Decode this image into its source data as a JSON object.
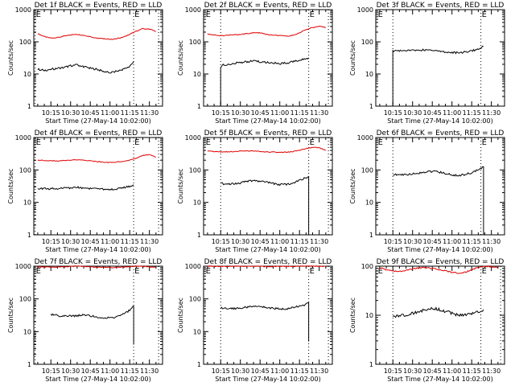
{
  "chart_data": [
    {
      "type": "line",
      "title": "Det 1f BLACK = Events, RED = LLD",
      "xlabel": "Start Time (27-May-14 10:02:00)",
      "ylabel": "Counts/sec",
      "yscale": "log",
      "ylim": [
        1,
        1000
      ],
      "y_ticks": [
        "1",
        "10",
        "100",
        "1000"
      ],
      "x_ticks": [
        "10:15",
        "10:30",
        "10:45",
        "11:00",
        "11:15",
        "11:30"
      ],
      "x_minutes": [
        15,
        30,
        45,
        60,
        75,
        90
      ],
      "xlim_minutes": [
        2,
        100
      ],
      "markers": [
        "E",
        "E"
      ],
      "marker_minutes": [
        3,
        78
      ],
      "vertical_dotted_minutes": [
        3,
        78,
        97
      ],
      "series": [
        {
          "color": "#e00000",
          "x": [
            5,
            10,
            15,
            20,
            25,
            30,
            35,
            40,
            45,
            50,
            55,
            60,
            65,
            70,
            75,
            80,
            85,
            90,
            95
          ],
          "y": [
            180,
            145,
            130,
            135,
            150,
            165,
            170,
            160,
            145,
            130,
            125,
            120,
            125,
            140,
            170,
            215,
            255,
            250,
            210
          ]
        },
        {
          "color": "#000000",
          "x": [
            5,
            10,
            15,
            20,
            25,
            30,
            35,
            40,
            45,
            50,
            55,
            60,
            65,
            70,
            75,
            78
          ],
          "y": [
            14,
            13,
            14,
            15,
            16,
            18,
            19,
            17,
            15,
            14,
            12,
            11,
            12,
            14,
            17,
            25
          ]
        }
      ]
    },
    {
      "type": "line",
      "title": "Det 2f BLACK = Events, RED = LLD",
      "xlabel": "Start Time (27-May-14 10:02:00)",
      "ylabel": "Counts/sec",
      "yscale": "log",
      "ylim": [
        1,
        1000
      ],
      "y_ticks": [
        "1",
        "10",
        "100",
        "1000"
      ],
      "x_ticks": [
        "10:15",
        "10:30",
        "10:45",
        "11:00",
        "11:15",
        "11:30"
      ],
      "x_minutes": [
        15,
        30,
        45,
        60,
        75,
        90
      ],
      "xlim_minutes": [
        2,
        100
      ],
      "markers": [
        "E",
        "E"
      ],
      "marker_minutes": [
        3,
        82
      ],
      "vertical_dotted_minutes": [
        15,
        82,
        97
      ],
      "series": [
        {
          "color": "#e00000",
          "x": [
            5,
            10,
            15,
            20,
            25,
            30,
            35,
            40,
            45,
            50,
            55,
            60,
            65,
            70,
            75,
            80,
            85,
            90,
            95
          ],
          "y": [
            175,
            165,
            155,
            160,
            165,
            170,
            180,
            190,
            190,
            170,
            160,
            155,
            150,
            160,
            190,
            240,
            280,
            300,
            280
          ]
        },
        {
          "color": "#000000",
          "x": [
            15,
            15,
            17,
            20,
            25,
            30,
            35,
            40,
            45,
            50,
            55,
            60,
            65,
            70,
            75,
            80,
            82
          ],
          "y": [
            1,
            15,
            19,
            20,
            21,
            23,
            24,
            25,
            24,
            23,
            22,
            21,
            22,
            24,
            27,
            30,
            32
          ]
        }
      ]
    },
    {
      "type": "line",
      "title": "Det 3f BLACK = Events, RED = LLD",
      "xlabel": "Start Time (27-May-14 10:02:00)",
      "ylabel": "Counts/sec",
      "yscale": "log",
      "ylim": [
        1,
        1000
      ],
      "y_ticks": [
        "1",
        "10",
        "100",
        "1000"
      ],
      "x_ticks": [
        "10:15",
        "10:30",
        "10:45",
        "11:00",
        "11:15",
        "11:30"
      ],
      "x_minutes": [
        15,
        30,
        45,
        60,
        75,
        90
      ],
      "xlim_minutes": [
        2,
        100
      ],
      "markers": [
        "E",
        "E"
      ],
      "marker_minutes": [
        3,
        82
      ],
      "vertical_dotted_minutes": [
        15,
        82
      ],
      "series": [
        {
          "color": "#000000",
          "x": [
            15,
            15,
            17,
            20,
            25,
            30,
            35,
            40,
            45,
            50,
            55,
            60,
            65,
            70,
            75,
            80,
            84
          ],
          "y": [
            1,
            52,
            52,
            52,
            53,
            54,
            55,
            56,
            55,
            52,
            48,
            46,
            46,
            48,
            52,
            60,
            72
          ]
        }
      ]
    },
    {
      "type": "line",
      "title": "Det 4f BLACK = Events, RED = LLD",
      "xlabel": "Start Time (27-May-14 10:02:00)",
      "ylabel": "Counts/sec",
      "yscale": "log",
      "ylim": [
        1,
        1000
      ],
      "y_ticks": [
        "1",
        "10",
        "100",
        "1000"
      ],
      "x_ticks": [
        "10:15",
        "10:30",
        "10:45",
        "11:00",
        "11:15",
        "11:30"
      ],
      "x_minutes": [
        15,
        30,
        45,
        60,
        75,
        90
      ],
      "xlim_minutes": [
        2,
        100
      ],
      "markers": [
        "E",
        "E"
      ],
      "marker_minutes": [
        3,
        78
      ],
      "vertical_dotted_minutes": [
        3,
        78,
        97
      ],
      "series": [
        {
          "color": "#e00000",
          "x": [
            5,
            10,
            15,
            20,
            25,
            30,
            35,
            40,
            45,
            50,
            55,
            60,
            65,
            70,
            75,
            80,
            85,
            90,
            95
          ],
          "y": [
            200,
            195,
            190,
            190,
            195,
            200,
            205,
            200,
            190,
            180,
            175,
            170,
            175,
            185,
            200,
            230,
            280,
            300,
            250
          ]
        },
        {
          "color": "#000000",
          "x": [
            5,
            10,
            15,
            20,
            25,
            30,
            35,
            40,
            45,
            50,
            55,
            60,
            65,
            70,
            75,
            78
          ],
          "y": [
            27,
            27,
            26,
            27,
            28,
            28,
            29,
            28,
            27,
            26,
            25,
            25,
            26,
            28,
            31,
            35
          ]
        }
      ]
    },
    {
      "type": "line",
      "title": "Det 5f BLACK = Events, RED = LLD",
      "xlabel": "Start Time (27-May-14 10:02:00)",
      "ylabel": "Counts/sec",
      "yscale": "log",
      "ylim": [
        1,
        1000
      ],
      "y_ticks": [
        "1",
        "10",
        "100",
        "1000"
      ],
      "x_ticks": [
        "10:15",
        "10:30",
        "10:45",
        "11:00",
        "11:15",
        "11:30"
      ],
      "x_minutes": [
        15,
        30,
        45,
        60,
        75,
        90
      ],
      "xlim_minutes": [
        2,
        100
      ],
      "markers": [
        "E",
        "E"
      ],
      "marker_minutes": [
        3,
        82
      ],
      "vertical_dotted_minutes": [
        15,
        82,
        97
      ],
      "series": [
        {
          "color": "#e00000",
          "x": [
            5,
            10,
            15,
            20,
            25,
            30,
            35,
            40,
            45,
            50,
            55,
            60,
            65,
            70,
            75,
            80,
            85,
            90,
            95
          ],
          "y": [
            380,
            370,
            360,
            365,
            370,
            380,
            385,
            380,
            370,
            360,
            355,
            350,
            355,
            370,
            400,
            450,
            500,
            480,
            400
          ]
        },
        {
          "color": "#000000",
          "x": [
            15,
            20,
            25,
            30,
            35,
            40,
            45,
            50,
            55,
            60,
            65,
            70,
            75,
            80,
            82,
            82
          ],
          "y": [
            38,
            37,
            38,
            40,
            44,
            46,
            45,
            42,
            38,
            35,
            36,
            40,
            48,
            58,
            62,
            1
          ]
        }
      ]
    },
    {
      "type": "line",
      "title": "Det 6f BLACK = Events, RED = LLD",
      "xlabel": "Start Time (27-May-14 10:02:00)",
      "ylabel": "Counts/sec",
      "yscale": "log",
      "ylim": [
        1,
        1000
      ],
      "y_ticks": [
        "1",
        "10",
        "100",
        "1000"
      ],
      "x_ticks": [
        "10:15",
        "10:30",
        "10:45",
        "11:00",
        "11:15",
        "11:30"
      ],
      "x_minutes": [
        15,
        30,
        45,
        60,
        75,
        90
      ],
      "xlim_minutes": [
        2,
        100
      ],
      "markers": [
        "E",
        "E"
      ],
      "marker_minutes": [
        3,
        82
      ],
      "vertical_dotted_minutes": [
        15,
        82
      ],
      "series": [
        {
          "color": "#000000",
          "x": [
            15,
            20,
            25,
            30,
            35,
            40,
            45,
            50,
            55,
            60,
            65,
            70,
            75,
            80,
            84,
            84
          ],
          "y": [
            72,
            70,
            72,
            75,
            80,
            88,
            90,
            86,
            78,
            70,
            68,
            72,
            82,
            100,
            125,
            1
          ]
        }
      ]
    },
    {
      "type": "line",
      "title": "Det 7f BLACK = Events, RED = LLD",
      "xlabel": "Start Time (27-May-14 10:02:00)",
      "ylabel": "Counts/sec",
      "yscale": "log",
      "ylim": [
        1,
        1000
      ],
      "y_ticks": [
        "1",
        "10",
        "100",
        "1000"
      ],
      "x_ticks": [
        "10:15",
        "10:30",
        "10:45",
        "11:00",
        "11:15",
        "11:30"
      ],
      "x_minutes": [
        15,
        30,
        45,
        60,
        75,
        90
      ],
      "xlim_minutes": [
        2,
        100
      ],
      "markers": [
        "E",
        "E"
      ],
      "marker_minutes": [
        3,
        78
      ],
      "vertical_dotted_minutes": [
        3,
        78,
        97
      ],
      "series": [
        {
          "color": "#e00000",
          "x": [
            5,
            10,
            15,
            20,
            25,
            30,
            35,
            40,
            45,
            50,
            55,
            60,
            65,
            70,
            75,
            80,
            85,
            90,
            95
          ],
          "y": [
            960,
            940,
            930,
            940,
            960,
            980,
            1000,
            990,
            960,
            930,
            920,
            910,
            920,
            940,
            970,
            1000,
            980,
            960,
            940
          ]
        },
        {
          "color": "#000000",
          "x": [
            15,
            20,
            25,
            30,
            35,
            40,
            45,
            50,
            55,
            60,
            65,
            70,
            75,
            78,
            78
          ],
          "y": [
            33,
            31,
            30,
            30,
            31,
            32,
            30,
            28,
            26,
            26,
            28,
            34,
            45,
            60,
            4
          ]
        }
      ]
    },
    {
      "type": "line",
      "title": "Det 8f BLACK = Events, RED = LLD",
      "xlabel": "Start Time (27-May-14 10:02:00)",
      "ylabel": "Counts/sec",
      "yscale": "log",
      "ylim": [
        1,
        1000
      ],
      "y_ticks": [
        "1",
        "10",
        "100",
        "1000"
      ],
      "x_ticks": [
        "10:15",
        "10:30",
        "10:45",
        "11:00",
        "11:15",
        "11:30"
      ],
      "x_minutes": [
        15,
        30,
        45,
        60,
        75,
        90
      ],
      "xlim_minutes": [
        2,
        100
      ],
      "markers": [
        "E",
        "E"
      ],
      "marker_minutes": [
        3,
        82
      ],
      "vertical_dotted_minutes": [
        15,
        82,
        97
      ],
      "series": [
        {
          "color": "#e00000",
          "x": [
            5,
            10,
            15,
            20,
            25,
            30,
            35,
            40,
            45,
            50,
            55,
            60,
            65,
            70,
            75,
            80,
            85,
            90,
            95
          ],
          "y": [
            1000,
            990,
            985,
            990,
            1000,
            1000,
            1000,
            995,
            990,
            985,
            980,
            980,
            985,
            990,
            1000,
            1000,
            1000,
            995,
            990
          ]
        },
        {
          "color": "#000000",
          "x": [
            15,
            20,
            25,
            30,
            35,
            40,
            45,
            50,
            55,
            60,
            65,
            70,
            75,
            80,
            82,
            82
          ],
          "y": [
            52,
            50,
            51,
            53,
            56,
            58,
            57,
            55,
            52,
            50,
            50,
            54,
            60,
            68,
            78,
            5
          ]
        }
      ]
    },
    {
      "type": "line",
      "title": "Det 9f BLACK = Events, RED = LLD",
      "xlabel": "Start Time (27-May-14 10:02:00)",
      "ylabel": "Counts/sec",
      "yscale": "log",
      "ylim": [
        1,
        100
      ],
      "y_ticks": [
        "1",
        "10",
        "100"
      ],
      "x_ticks": [
        "10:15",
        "10:30",
        "10:45",
        "11:00",
        "11:15",
        "11:30"
      ],
      "x_minutes": [
        15,
        30,
        45,
        60,
        75,
        90
      ],
      "xlim_minutes": [
        2,
        100
      ],
      "markers": [
        "E",
        "E"
      ],
      "marker_minutes": [
        3,
        82
      ],
      "vertical_dotted_minutes": [
        15,
        82,
        97
      ],
      "series": [
        {
          "color": "#e00000",
          "x": [
            5,
            10,
            15,
            20,
            25,
            30,
            35,
            40,
            45,
            50,
            55,
            60,
            65,
            70,
            75,
            80,
            85,
            90,
            95
          ],
          "y": [
            92,
            85,
            80,
            78,
            82,
            88,
            92,
            95,
            90,
            85,
            80,
            75,
            72,
            75,
            85,
            95,
            100,
            98,
            95
          ]
        },
        {
          "color": "#000000",
          "x": [
            15,
            20,
            25,
            30,
            35,
            40,
            45,
            50,
            55,
            60,
            65,
            70,
            75,
            80,
            84
          ],
          "y": [
            9,
            10,
            10,
            11,
            12,
            13,
            14,
            13,
            12,
            11,
            10,
            10,
            11,
            12,
            13
          ]
        }
      ]
    }
  ]
}
